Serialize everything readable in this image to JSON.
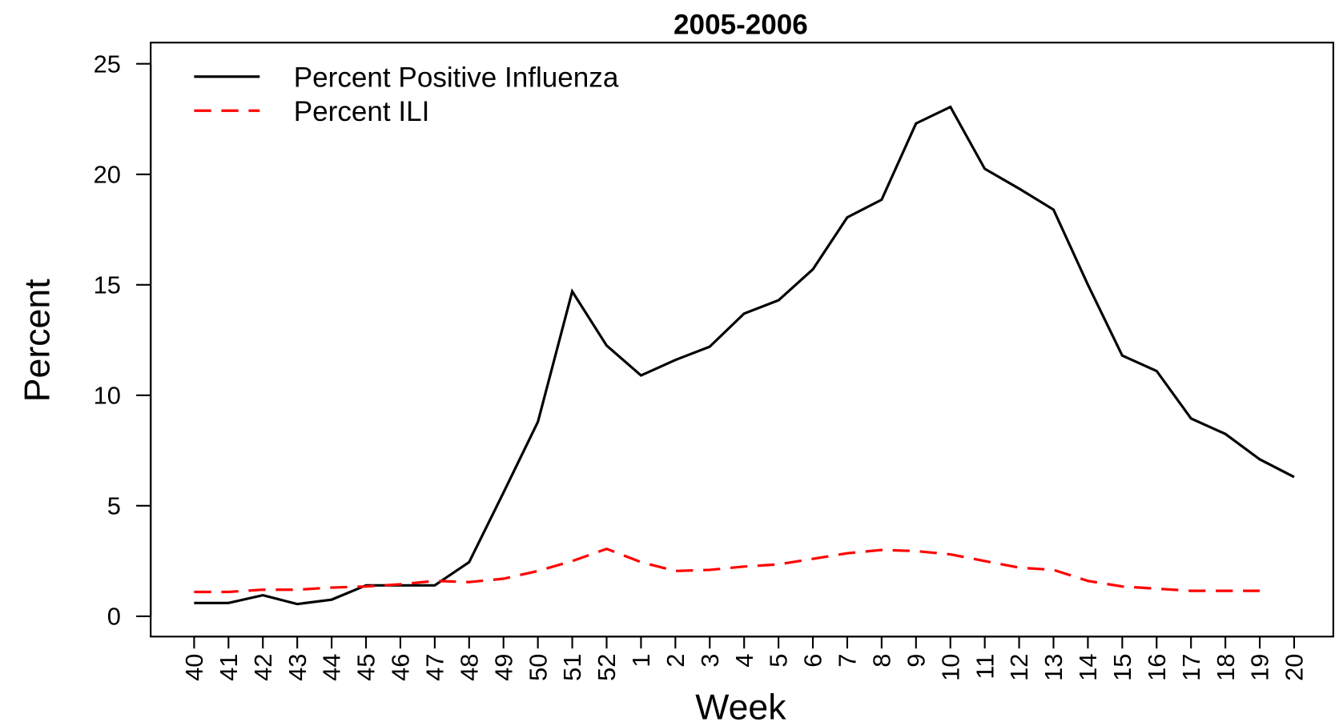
{
  "chart_data": {
    "type": "line",
    "title": "2005-2006",
    "x_label": "Week",
    "y_label": "Percent",
    "categories": [
      "40",
      "41",
      "42",
      "43",
      "44",
      "45",
      "46",
      "47",
      "48",
      "49",
      "50",
      "51",
      "52",
      "1",
      "2",
      "3",
      "4",
      "5",
      "6",
      "7",
      "8",
      "9",
      "10",
      "11",
      "12",
      "13",
      "14",
      "15",
      "16",
      "17",
      "18",
      "19",
      "20"
    ],
    "series": [
      {
        "name": "Percent Positive Influenza",
        "color": "#000000",
        "dash": "solid",
        "values": [
          0.6,
          0.6,
          0.95,
          0.55,
          0.75,
          1.4,
          1.4,
          1.4,
          2.45,
          5.6,
          8.8,
          14.7,
          12.25,
          10.9,
          11.6,
          12.2,
          13.7,
          14.3,
          15.7,
          18.05,
          18.85,
          22.3,
          23.05,
          20.25,
          19.35,
          18.4,
          15.0,
          11.8,
          11.1,
          8.95,
          8.25,
          7.1,
          6.3
        ]
      },
      {
        "name": "Percent ILI",
        "color": "#ff0000",
        "dash": "dashed",
        "values": [
          1.1,
          1.1,
          1.2,
          1.2,
          1.3,
          1.35,
          1.45,
          1.6,
          1.55,
          1.7,
          2.05,
          2.5,
          3.05,
          2.45,
          2.05,
          2.1,
          2.25,
          2.35,
          2.6,
          2.85,
          3.0,
          2.95,
          2.8,
          2.5,
          2.2,
          2.1,
          1.6,
          1.35,
          1.25,
          1.15,
          1.15,
          1.15,
          null
        ]
      }
    ],
    "ylim": [
      -0.92,
      25.96
    ],
    "yticks": [
      0,
      5,
      10,
      15,
      20,
      25
    ],
    "legend": "top-left",
    "grid": false
  }
}
